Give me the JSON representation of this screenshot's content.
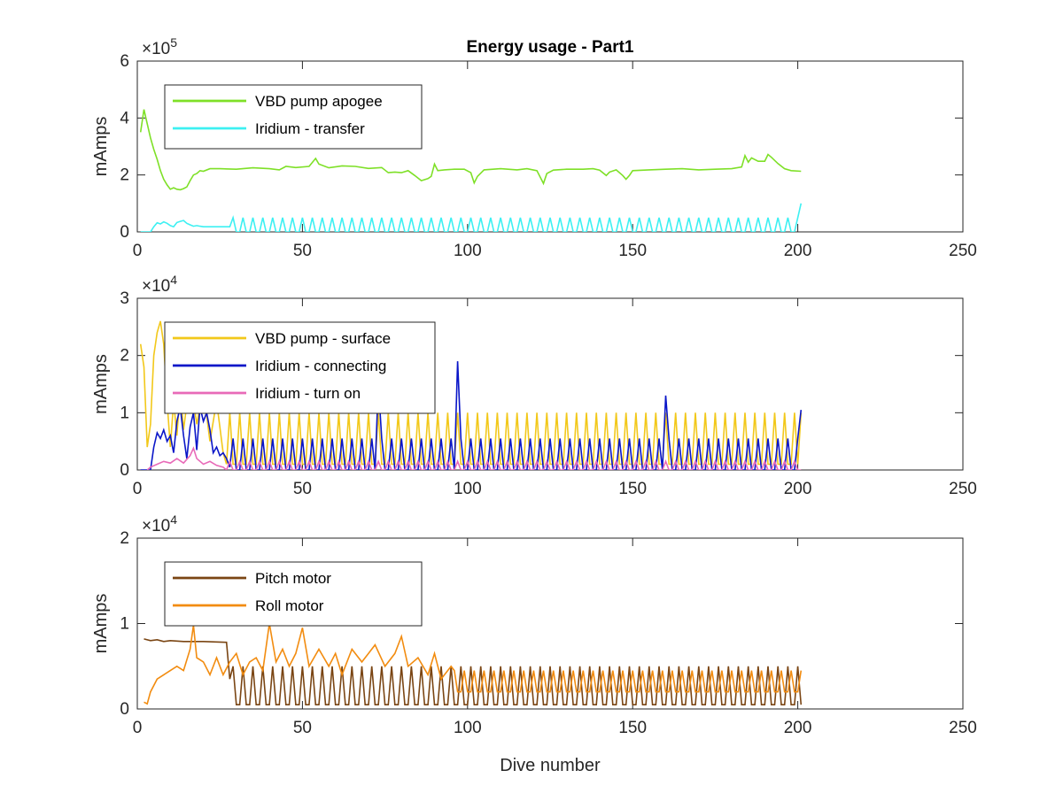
{
  "chart_data": [
    {
      "type": "line",
      "title": "Energy usage - Part1",
      "ylabel": "mAmps",
      "xlabel": "",
      "xlim": [
        0,
        250
      ],
      "ylim": [
        0,
        600000
      ],
      "xticks": [
        "0",
        "50",
        "100",
        "150",
        "200",
        "250"
      ],
      "yticks": [
        "0",
        "2",
        "4",
        "6"
      ],
      "y_exponent_base": "×10",
      "y_exponent": "5",
      "legend_position": "top-left",
      "grid": false,
      "series": [
        {
          "name": "VBD pump apogee",
          "color": "#7ee027",
          "points": [
            [
              1,
              350000
            ],
            [
              2,
              430000
            ],
            [
              3,
              380000
            ],
            [
              4,
              330000
            ],
            [
              5,
              290000
            ],
            [
              6,
              255000
            ],
            [
              7,
              215000
            ],
            [
              8,
              185000
            ],
            [
              9,
              165000
            ],
            [
              10,
              150000
            ],
            [
              11,
              155000
            ],
            [
              12,
              150000
            ],
            [
              13,
              148000
            ],
            [
              14,
              152000
            ],
            [
              15,
              158000
            ],
            [
              16,
              180000
            ],
            [
              17,
              200000
            ],
            [
              18,
              205000
            ],
            [
              19,
              215000
            ],
            [
              20,
              213000
            ],
            [
              22,
              222000
            ],
            [
              25,
              222000
            ],
            [
              30,
              220000
            ],
            [
              35,
              225000
            ],
            [
              40,
              222000
            ],
            [
              43,
              218000
            ],
            [
              45,
              230000
            ],
            [
              48,
              226000
            ],
            [
              52,
              230000
            ],
            [
              54,
              258000
            ],
            [
              55,
              238000
            ],
            [
              58,
              225000
            ],
            [
              62,
              232000
            ],
            [
              66,
              230000
            ],
            [
              70,
              223000
            ],
            [
              74,
              226000
            ],
            [
              76,
              208000
            ],
            [
              78,
              210000
            ],
            [
              80,
              208000
            ],
            [
              82,
              215000
            ],
            [
              84,
              198000
            ],
            [
              86,
              180000
            ],
            [
              88,
              187000
            ],
            [
              89,
              195000
            ],
            [
              90,
              238000
            ],
            [
              91,
              215000
            ],
            [
              93,
              218000
            ],
            [
              96,
              220000
            ],
            [
              99,
              220000
            ],
            [
              101,
              208000
            ],
            [
              102,
              172000
            ],
            [
              103,
              195000
            ],
            [
              105,
              218000
            ],
            [
              110,
              222000
            ],
            [
              115,
              218000
            ],
            [
              118,
              222000
            ],
            [
              121,
              215000
            ],
            [
              123,
              170000
            ],
            [
              124,
              205000
            ],
            [
              126,
              217000
            ],
            [
              130,
              220000
            ],
            [
              135,
              220000
            ],
            [
              138,
              222000
            ],
            [
              140,
              217000
            ],
            [
              142,
              198000
            ],
            [
              143,
              210000
            ],
            [
              145,
              218000
            ],
            [
              147,
              198000
            ],
            [
              148,
              185000
            ],
            [
              149,
              198000
            ],
            [
              150,
              215000
            ],
            [
              155,
              218000
            ],
            [
              160,
              220000
            ],
            [
              165,
              222000
            ],
            [
              170,
              218000
            ],
            [
              175,
              220000
            ],
            [
              180,
              222000
            ],
            [
              183,
              228000
            ],
            [
              184,
              268000
            ],
            [
              185,
              245000
            ],
            [
              186,
              260000
            ],
            [
              188,
              248000
            ],
            [
              190,
              248000
            ],
            [
              191,
              272000
            ],
            [
              192,
              262000
            ],
            [
              194,
              240000
            ],
            [
              196,
              222000
            ],
            [
              198,
              215000
            ],
            [
              201,
              213000
            ]
          ]
        },
        {
          "name": "Iridium - transfer",
          "color": "#3df0f2",
          "points": "osc:1:0|2:0|3:0|4:0|5:18000|6:32000|7:28000|8:35000|9:30000|10:22000|11:18000|12:33000|13:37000|14:40000|15:30000|16:25000|17:20000|18:22000|19:20000|20:18000|28:18000|c:28:201:3:0:50000|201:100000"
        }
      ]
    },
    {
      "type": "line",
      "title": "",
      "ylabel": "mAmps",
      "xlabel": "",
      "xlim": [
        0,
        250
      ],
      "ylim": [
        0,
        30000
      ],
      "xticks": [
        "0",
        "50",
        "100",
        "150",
        "200",
        "250"
      ],
      "yticks": [
        "0",
        "1",
        "2",
        "3"
      ],
      "y_exponent_base": "×10",
      "y_exponent": "4",
      "legend_position": "top-left",
      "grid": false,
      "series": [
        {
          "name": "VBD pump - surface",
          "color": "#f2c81a",
          "points": "osc:1:22000|2:18000|3:4000|4:8000|5:20000|6:24000|7:26000|8:22000|9:12000|10:4000|11:12000|12:6000|13:14000|14:7000|16:16000|18:8000|20:14000|22:5000|24:12000|26:3000|27:0|c:27:201:3:1000:10000|201:10000"
        },
        {
          "name": "Iridium - connecting",
          "color": "#0a16c8",
          "points": "osc:1:0|3:0|4:0|5:4000|6:6500|7:5500|8:7000|9:5000|10:6000|11:3000|12:8500|13:11000|14:6000|15:2000|16:7500|17:10000|18:3500|19:11000|20:8500|21:10000|22:7000|23:3000|24:4000|25:2500|26:3000|27:2000|28:500|c:28:201:3:0:5500|73:15000|97:19000|160:13000|201:10500"
        },
        {
          "name": "Iridium - turn on",
          "color": "#e86ab8",
          "points": "osc:3:0|4:500|6:1000|8:1500|10:1200|12:2000|14:1200|16:2500|17:3800|18:2000|20:1000|22:1500|24:800|26:500|27:0|c:27:201:3:0:1500"
        }
      ]
    },
    {
      "type": "line",
      "title": "",
      "ylabel": "mAmps",
      "xlabel": "Dive number",
      "xlim": [
        0,
        250
      ],
      "ylim": [
        0,
        20000
      ],
      "xticks": [
        "0",
        "50",
        "100",
        "150",
        "200",
        "250"
      ],
      "yticks": [
        "0",
        "1",
        "2"
      ],
      "y_exponent_base": "×10",
      "y_exponent": "4",
      "legend_position": "top-left",
      "grid": false,
      "series": [
        {
          "name": "Pitch motor",
          "color": "#7a4513",
          "points": "osc:2:8200|4:8000|6:8100|8:7900|10:8000|14:7900|20:7900|27:7800|28:3500|c:28:201:3:500:5000"
        },
        {
          "name": "Roll motor",
          "color": "#f28c10",
          "points": "osc:2:800|3:600|4:2000|6:3500|8:4000|10:4500|12:5000|14:4500|16:7000|17:9800|18:6000|20:5500|22:4000|24:6000|26:4000|28:5500|30:6500|32:4000|34:5500|36:6000|38:4500|40:10000|42:5500|44:7000|46:5000|48:6500|50:9500|52:5000|55:7000|58:5000|60:6500|62:4000|65:7000|68:5500|70:6500|72:7500|75:5000|78:6500|80:8500|82:5000|85:6000|88:4000|90:6500|92:3500|95:5000|c:95:201:3:2000:4500"
        }
      ]
    }
  ]
}
